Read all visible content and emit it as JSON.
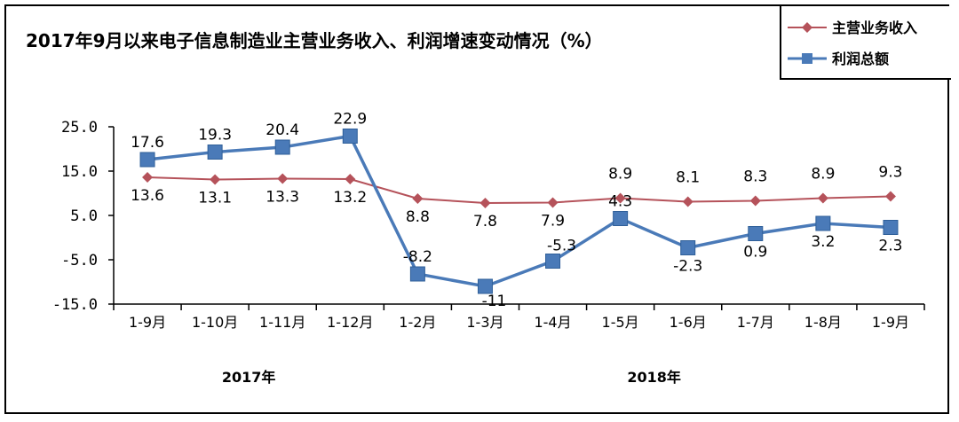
{
  "chart_data": {
    "type": "line",
    "title": "2017年9月以来电子信息制造业主营业务收入、利润增速变动情况（%）",
    "categories": [
      "1-9月",
      "1-10月",
      "1-11月",
      "1-12月",
      "1-2月",
      "1-3月",
      "1-4月",
      "1-5月",
      "1-6月",
      "1-7月",
      "1-8月",
      "1-9月"
    ],
    "group_labels": [
      {
        "label": "2017年",
        "from": 0,
        "to": 3
      },
      {
        "label": "2018年",
        "from": 4,
        "to": 11
      }
    ],
    "ylim": [
      -15,
      25
    ],
    "yticks": [
      25,
      15,
      5,
      -5,
      -15
    ],
    "ytick_labels": [
      "25.0",
      "15.0",
      "5.0",
      "-5.0",
      "-15.0"
    ],
    "legend_position": "top-right",
    "series": [
      {
        "name": "主营业务收入",
        "color": "#b5525a",
        "marker": "diamond",
        "values": [
          13.6,
          13.1,
          13.3,
          13.2,
          8.8,
          7.8,
          7.9,
          8.9,
          8.1,
          8.3,
          8.9,
          9.3
        ],
        "labels": [
          "13.6",
          "13.1",
          "13.3",
          "13.2",
          "8.8",
          "7.8",
          "7.9",
          "8.9",
          "8.1",
          "8.3",
          "8.9",
          "9.3"
        ]
      },
      {
        "name": "利润总额",
        "color": "#4a7ab8",
        "marker": "square",
        "values": [
          17.6,
          19.3,
          20.4,
          22.9,
          -8.2,
          -11,
          -5.3,
          4.3,
          -2.3,
          0.9,
          3.2,
          2.3
        ],
        "labels": [
          "17.6",
          "19.3",
          "20.4",
          "22.9",
          "-8.2",
          "-11",
          "-5.3",
          "4.3",
          "-2.3",
          "0.9",
          "3.2",
          "2.3"
        ]
      }
    ]
  }
}
